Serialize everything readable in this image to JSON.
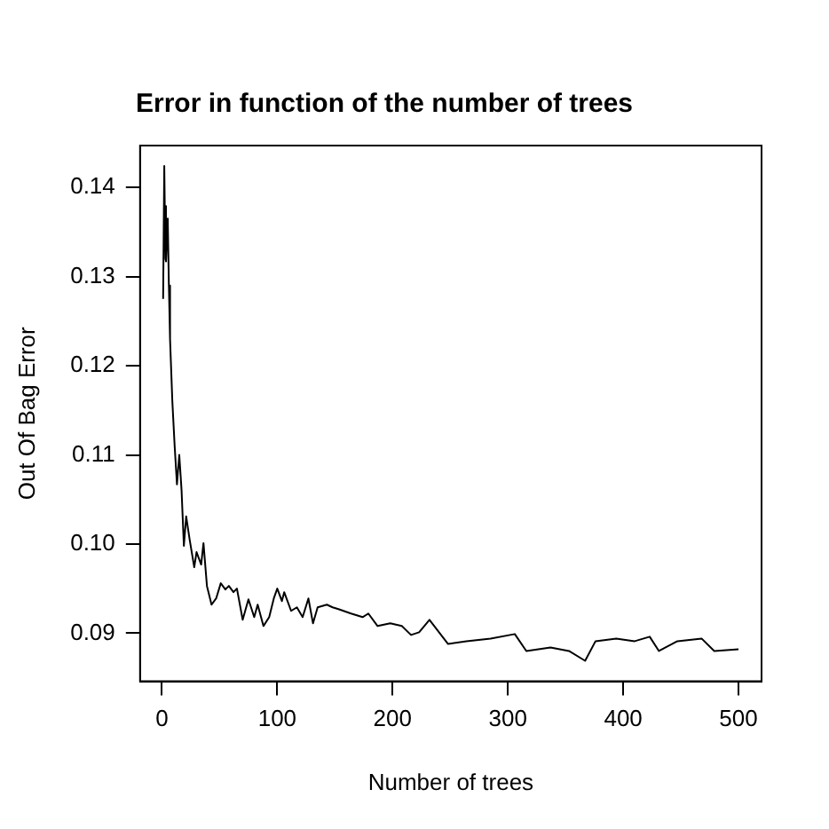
{
  "chart_data": {
    "type": "line",
    "title": "Error in function of the number of trees",
    "xlabel": "Number of trees",
    "ylabel": "Out Of Bag Error",
    "xlim": [
      -19,
      520
    ],
    "ylim": [
      0.0846,
      0.1447
    ],
    "xticks": [
      0,
      100,
      200,
      300,
      400,
      500
    ],
    "yticks": [
      {
        "value": 0.09,
        "label": "0.09"
      },
      {
        "value": 0.1,
        "label": "0.10"
      },
      0.11,
      0.12,
      0.13,
      0.14
    ],
    "grid": false,
    "legend": false,
    "marker": "none",
    "line_style": "solid",
    "series": [
      {
        "color": "#000000",
        "x": [
          1,
          2,
          3,
          3,
          4,
          5,
          6,
          7,
          9,
          11,
          13,
          15,
          17,
          19,
          21,
          24,
          28,
          30,
          34,
          36,
          39,
          43,
          47,
          51,
          55,
          58,
          62,
          65,
          70,
          75,
          80,
          83,
          88,
          93,
          97,
          100,
          104,
          106,
          112,
          117,
          122,
          127,
          131,
          135,
          143,
          148,
          153,
          164,
          174,
          179,
          187,
          198,
          208,
          216,
          223,
          232,
          248,
          264,
          285,
          306,
          316,
          337,
          353,
          367,
          376,
          394,
          410,
          423,
          431,
          447,
          468,
          479,
          500
        ],
        "values": [
          0.1275,
          0.1424,
          0.132,
          0.1379,
          0.1317,
          0.1365,
          0.129,
          0.123,
          0.116,
          0.111,
          0.1067,
          0.11,
          0.106,
          0.0998,
          0.1031,
          0.1005,
          0.0974,
          0.0991,
          0.0977,
          0.1001,
          0.0953,
          0.0932,
          0.0939,
          0.0956,
          0.0949,
          0.0953,
          0.0946,
          0.095,
          0.0915,
          0.0938,
          0.0918,
          0.0932,
          0.0908,
          0.0918,
          0.0939,
          0.095,
          0.0936,
          0.0946,
          0.0925,
          0.0929,
          0.0918,
          0.0939,
          0.0911,
          0.0929,
          0.0932,
          0.0929,
          0.0927,
          0.0922,
          0.0918,
          0.0922,
          0.0908,
          0.0911,
          0.0908,
          0.0898,
          0.0901,
          0.0915,
          0.0888,
          0.0891,
          0.0894,
          0.0899,
          0.088,
          0.0884,
          0.088,
          0.0869,
          0.0891,
          0.0894,
          0.0891,
          0.0896,
          0.088,
          0.0891,
          0.0894,
          0.088,
          0.0882
        ]
      }
    ]
  }
}
